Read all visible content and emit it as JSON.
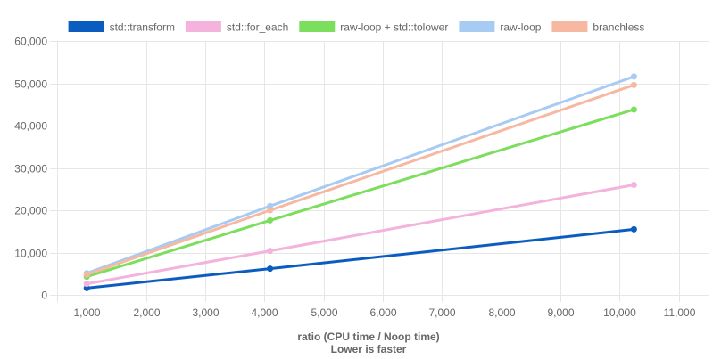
{
  "chart_data": {
    "type": "line",
    "xlabel": "ratio (CPU time / Noop time)",
    "xlabel_note": "Lower is faster",
    "ylabel": "",
    "xlim": [
      500,
      11500
    ],
    "ylim": [
      0,
      60000
    ],
    "x_ticks": [
      1000,
      2000,
      3000,
      4000,
      5000,
      6000,
      7000,
      8000,
      9000,
      10000,
      11000
    ],
    "x_tick_labels": [
      "1,000",
      "2,000",
      "3,000",
      "4,000",
      "5,000",
      "6,000",
      "7,000",
      "8,000",
      "9,000",
      "10,000",
      "11,000"
    ],
    "y_ticks": [
      0,
      10000,
      20000,
      30000,
      40000,
      50000,
      60000
    ],
    "y_tick_labels": [
      "0",
      "10,000",
      "20,000",
      "30,000",
      "40,000",
      "50,000",
      "60,000"
    ],
    "grid": true,
    "legend_position": "top",
    "series": [
      {
        "name": "std::transform",
        "color": "#0b5cbf",
        "x": [
          1000,
          4096,
          10240
        ],
        "y": [
          1600,
          6200,
          15500
        ]
      },
      {
        "name": "std::for_each",
        "color": "#f3b3dc",
        "x": [
          1000,
          4096,
          10240
        ],
        "y": [
          2600,
          10400,
          26000
        ]
      },
      {
        "name": "raw-loop + std::tolower",
        "color": "#7bde5c",
        "x": [
          1000,
          4096,
          10240
        ],
        "y": [
          4300,
          17600,
          43800
        ]
      },
      {
        "name": "raw-loop",
        "color": "#a7cbf3",
        "x": [
          1000,
          4096,
          10240
        ],
        "y": [
          5100,
          21000,
          51600
        ]
      },
      {
        "name": "branchless",
        "color": "#f6b8a1",
        "x": [
          1000,
          4096,
          10240
        ],
        "y": [
          4800,
          20000,
          49600
        ]
      }
    ]
  }
}
